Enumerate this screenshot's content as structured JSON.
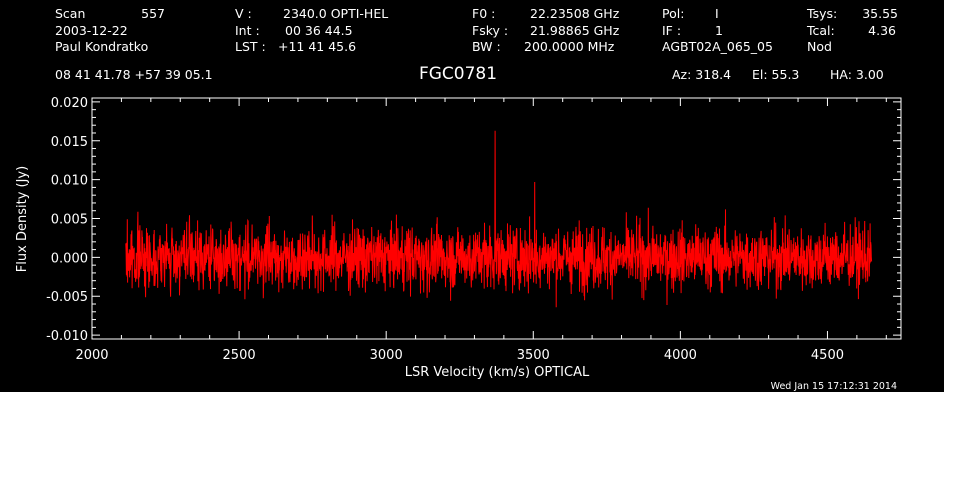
{
  "header": {
    "scan_label": "Scan",
    "scan_value": "557",
    "date": "2003-12-22",
    "observer": "Paul Kondratko",
    "v_label": "V   :",
    "v_value": "2340.0 OPTI-HEL",
    "int_label": "Int  :",
    "int_value": "00 36 44.5",
    "lst_label": "LST :",
    "lst_value": "+11 41 45.6",
    "f0_label": "F0    :",
    "f0_value": "22.23508 GHz",
    "fsky_label": "Fsky :",
    "fsky_value": "21.98865 GHz",
    "bw_label": "BW    :",
    "bw_value": "200.0000 MHz",
    "pol_label": "Pol:",
    "pol_value": "I",
    "if_label": "IF :",
    "if_value": "1",
    "project": "AGBT02A_065_05",
    "tsys_label": "Tsys:",
    "tsys_value": "35.55",
    "tcal_label": "Tcal:",
    "tcal_value": "4.36",
    "mode": "Nod",
    "coords": "08 41 41.78  +57 39 05.1",
    "source": "FGC0781",
    "az": "Az: 318.4",
    "el": "El:  55.3",
    "ha": "HA:  3.00",
    "timestamp": "Wed Jan 15 17:12:31 2014"
  },
  "chart_data": {
    "type": "line",
    "xlabel": "LSR Velocity (km/s) OPTICAL",
    "ylabel": "Flux Density (Jy)",
    "xlim": [
      2000,
      4750
    ],
    "ylim": [
      -0.0105,
      0.0205
    ],
    "xticks": [
      2000,
      2500,
      3000,
      3500,
      4000,
      4500
    ],
    "yticks": [
      -0.01,
      -0.005,
      0.0,
      0.005,
      0.01,
      0.015,
      0.02
    ],
    "ytick_labels": [
      "-0.010",
      "-0.005",
      "0.000",
      "0.005",
      "0.010",
      "0.015",
      "0.020"
    ],
    "series": [
      {
        "color": "#ff0000",
        "x_start": 2115,
        "x_end": 4650,
        "n_points": 2600,
        "noise_rms": 0.0027,
        "spikes": [
          {
            "x": 3370,
            "y": 0.0163
          },
          {
            "x": 3505,
            "y": 0.0097
          }
        ]
      }
    ]
  },
  "colors": {
    "background": "#000000",
    "axes": "#ffffff",
    "trace": "#ff0000"
  }
}
